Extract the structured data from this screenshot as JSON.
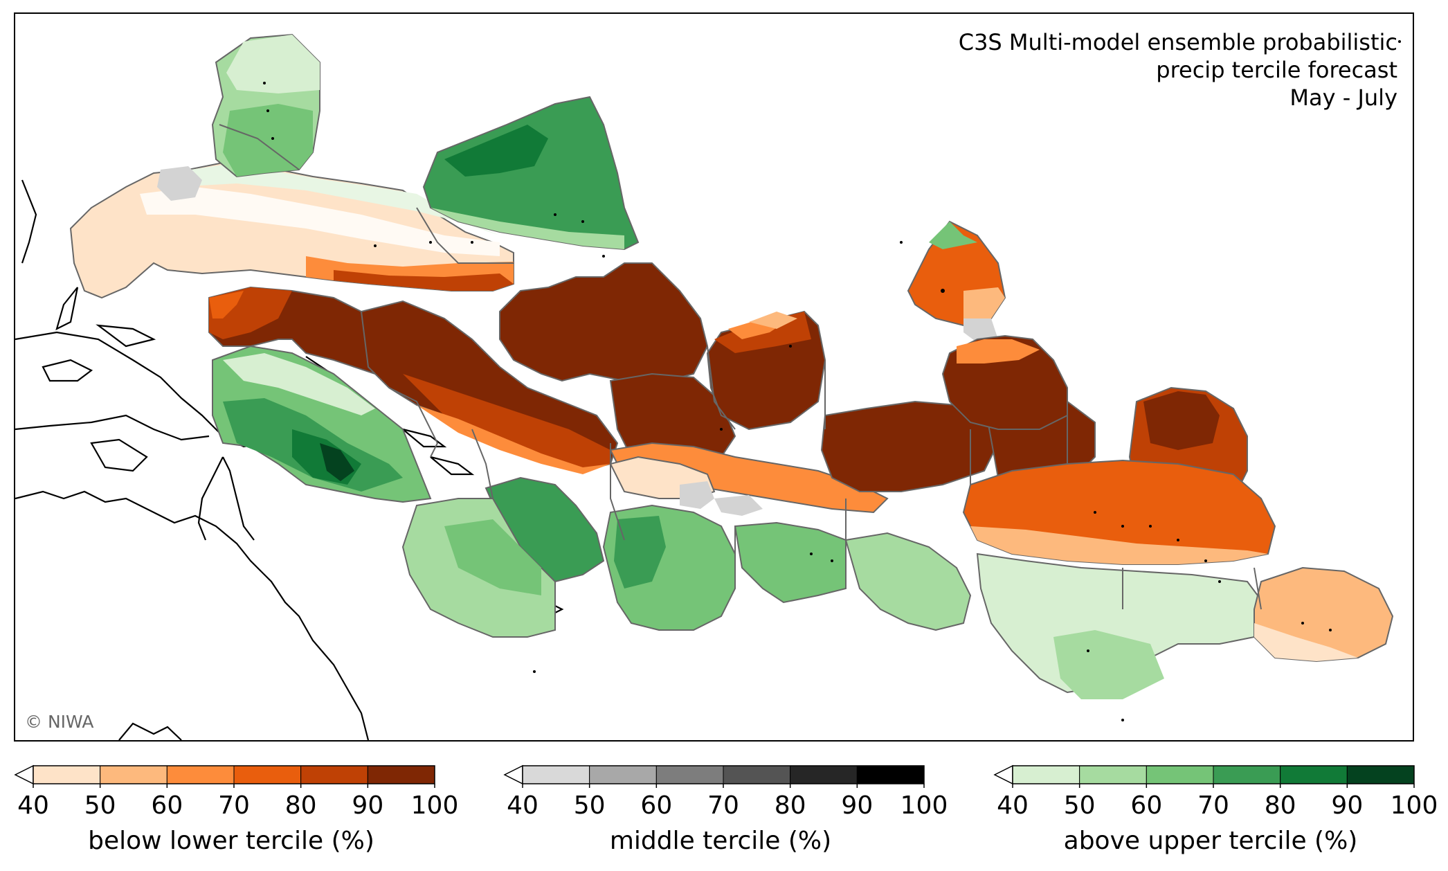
{
  "title": {
    "line1": "C3S Multi-model ensemble probabilistic",
    "line2": "precip tercile forecast",
    "line3": "May - July"
  },
  "credit": "© NIWA",
  "colorbars": [
    {
      "label": "below lower tercile (%)",
      "ticks": [
        "40",
        "50",
        "60",
        "70",
        "80",
        "90",
        "100"
      ],
      "colors": [
        "#fee3c8",
        "#fdb97d",
        "#fd8c3b",
        "#e95e0d",
        "#bf4105",
        "#7f2704"
      ]
    },
    {
      "label": "middle tercile (%)",
      "ticks": [
        "40",
        "50",
        "60",
        "70",
        "80",
        "90",
        "100"
      ],
      "colors": [
        "#d9d9d9",
        "#a8a8a8",
        "#7d7d7d",
        "#545454",
        "#262626",
        "#000000"
      ]
    },
    {
      "label": "above upper tercile (%)",
      "ticks": [
        "40",
        "50",
        "60",
        "70",
        "80",
        "90",
        "100"
      ],
      "colors": [
        "#d7efd1",
        "#a6dba0",
        "#75c477",
        "#3a9c54",
        "#117a37",
        "#04421f"
      ]
    }
  ]
}
